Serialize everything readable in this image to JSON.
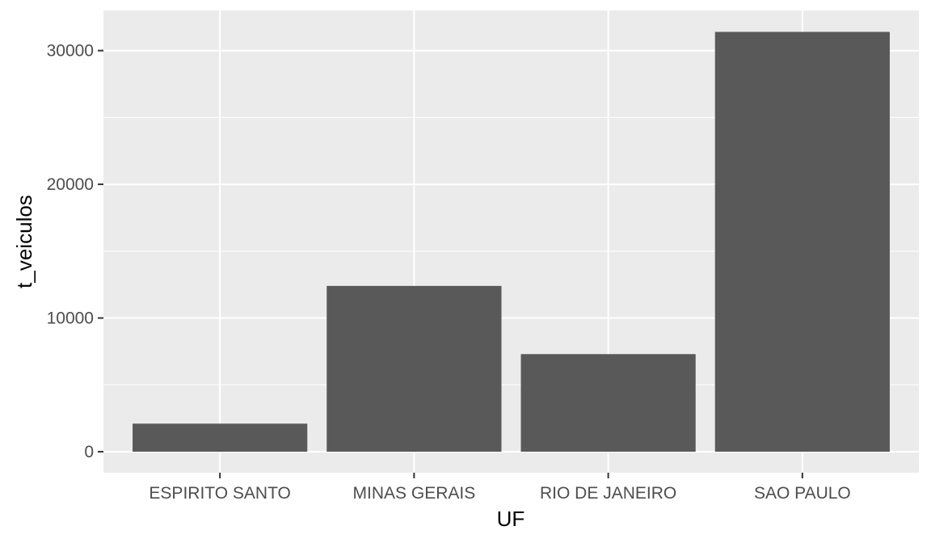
{
  "chart_data": {
    "type": "bar",
    "categories": [
      "ESPIRITO SANTO",
      "MINAS GERAIS",
      "RIO DE JANEIRO",
      "SAO PAULO"
    ],
    "values": [
      2100,
      12400,
      7300,
      31400
    ],
    "xlabel": "UF",
    "ylabel": "t_veiculos",
    "ylim": [
      -1570,
      33000
    ],
    "yticks": [
      0,
      10000,
      20000,
      30000
    ],
    "ytick_labels": [
      "0",
      "10000",
      "20000",
      "30000"
    ],
    "grid": true,
    "colors": {
      "panel": "#EBEBEB",
      "grid": "#FFFFFF",
      "bar": "#595959",
      "tick_text": "#4D4D4D"
    }
  }
}
